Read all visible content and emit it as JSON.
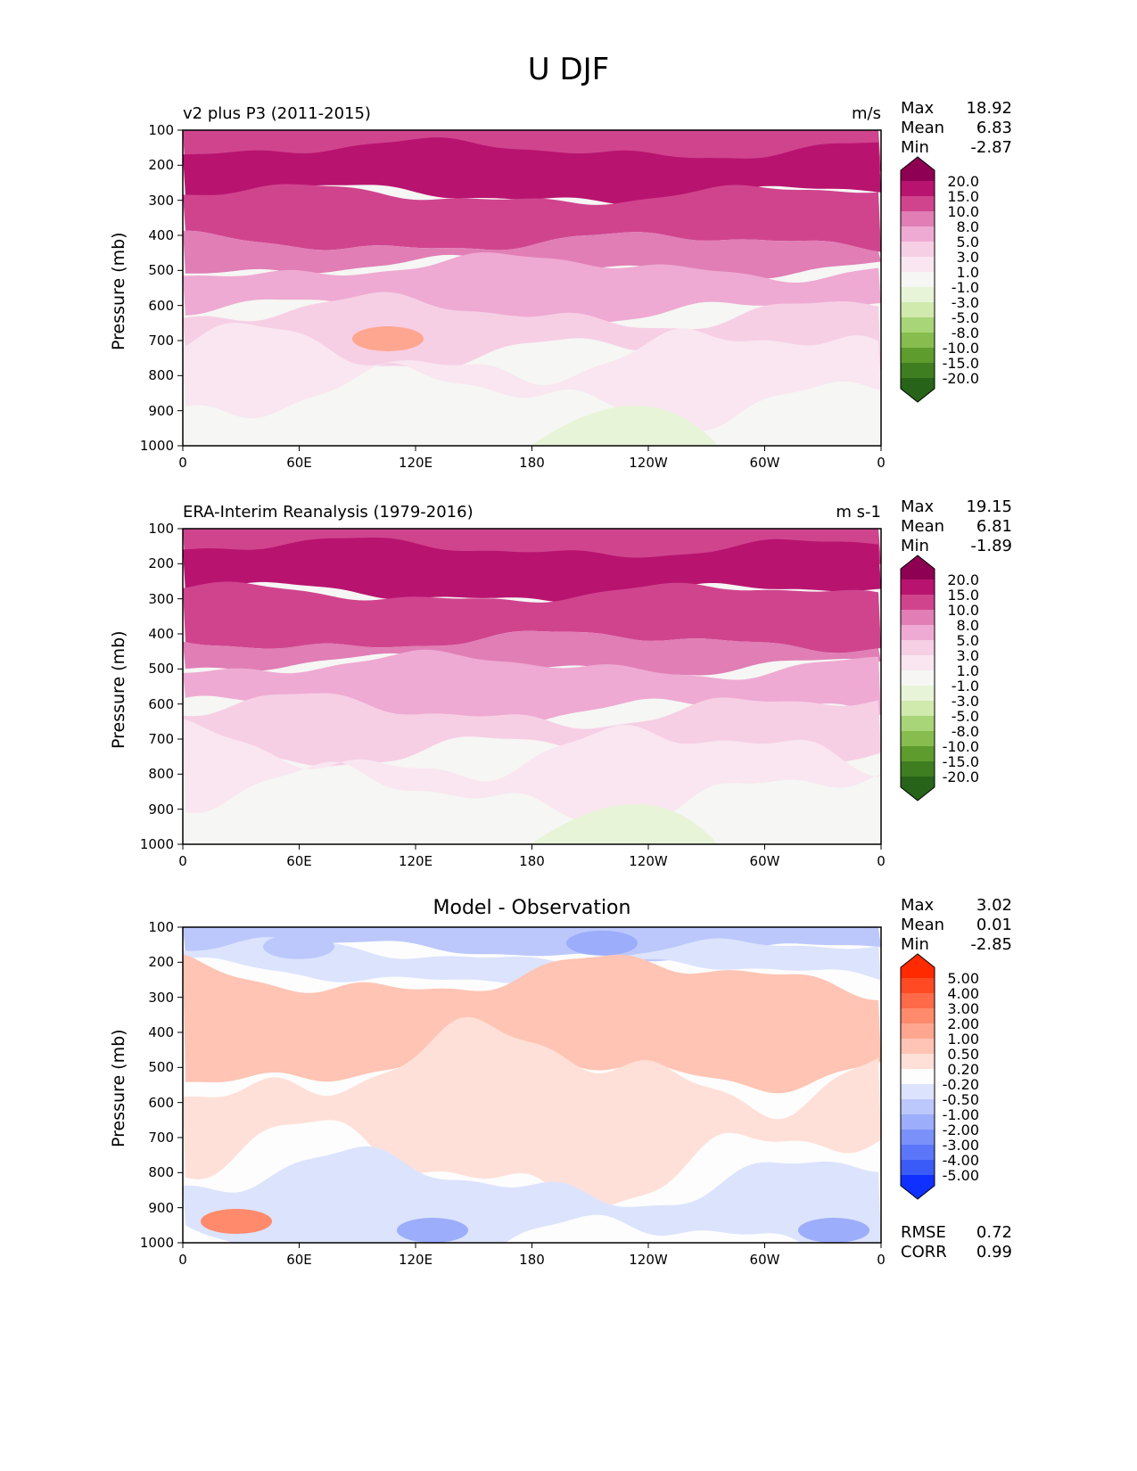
{
  "chart_data": [
    {
      "type": "heatmap",
      "suptitle": "U DJF",
      "title_left": "v2 plus P3 (2011-2015)",
      "title_right": "m/s",
      "ylabel": "Pressure (mb)",
      "xlabel": "",
      "x_ticks": [
        "0",
        "60E",
        "120E",
        "180",
        "120W",
        "60W",
        "0"
      ],
      "y_ticks": [
        "100",
        "200",
        "300",
        "400",
        "500",
        "600",
        "700",
        "800",
        "900",
        "1000"
      ],
      "xlim": [
        0,
        360
      ],
      "ylim": [
        1000,
        100
      ],
      "stats": {
        "Max": "18.92",
        "Mean": "6.83",
        "Min": "-2.87"
      },
      "colorbar": {
        "levels": [
          "20.0",
          "15.0",
          "10.0",
          "8.0",
          "5.0",
          "3.0",
          "1.0",
          "-1.0",
          "-3.0",
          "-5.0",
          "-8.0",
          "-10.0",
          "-15.0",
          "-20.0"
        ],
        "colors": [
          "#8e0152",
          "#b8146f",
          "#d0448e",
          "#e07eb5",
          "#eeaad2",
          "#f6cfe5",
          "#f9e6f0",
          "#f6f6f4",
          "#e8f4d8",
          "#d0eaae",
          "#a8d577",
          "#87bd4e",
          "#5f9c2e",
          "#3f7d21",
          "#276419"
        ]
      },
      "bands": [
        {
          "level": 20.0,
          "color": "#b8146f"
        },
        {
          "level": 15.0,
          "color": "#d0448e"
        },
        {
          "level": 10.0,
          "color": "#e07eb5"
        },
        {
          "level": 8.0,
          "color": "#eeaad2"
        },
        {
          "level": 5.0,
          "color": "#f6cfe5"
        },
        {
          "level": 3.0,
          "color": "#f9e6f0"
        },
        {
          "level": 1.0,
          "color": "#f6f6f4"
        }
      ]
    },
    {
      "type": "heatmap",
      "title_left": "ERA-Interim Reanalysis (1979-2016)",
      "title_right": "m s-1",
      "ylabel": "Pressure (mb)",
      "x_ticks": [
        "0",
        "60E",
        "120E",
        "180",
        "120W",
        "60W",
        "0"
      ],
      "y_ticks": [
        "100",
        "200",
        "300",
        "400",
        "500",
        "600",
        "700",
        "800",
        "900",
        "1000"
      ],
      "xlim": [
        0,
        360
      ],
      "ylim": [
        1000,
        100
      ],
      "stats": {
        "Max": "19.15",
        "Mean": "6.81",
        "Min": "-1.89"
      },
      "colorbar": {
        "levels": [
          "20.0",
          "15.0",
          "10.0",
          "8.0",
          "5.0",
          "3.0",
          "1.0",
          "-1.0",
          "-3.0",
          "-5.0",
          "-8.0",
          "-10.0",
          "-15.0",
          "-20.0"
        ],
        "colors": [
          "#8e0152",
          "#b8146f",
          "#d0448e",
          "#e07eb5",
          "#eeaad2",
          "#f6cfe5",
          "#f9e6f0",
          "#f6f6f4",
          "#e8f4d8",
          "#d0eaae",
          "#a8d577",
          "#87bd4e",
          "#5f9c2e",
          "#3f7d21",
          "#276419"
        ]
      }
    },
    {
      "type": "heatmap",
      "title_center": "Model - Observation",
      "ylabel": "Pressure (mb)",
      "x_ticks": [
        "0",
        "60E",
        "120E",
        "180",
        "120W",
        "60W",
        "0"
      ],
      "y_ticks": [
        "100",
        "200",
        "300",
        "400",
        "500",
        "600",
        "700",
        "800",
        "900",
        "1000"
      ],
      "xlim": [
        0,
        360
      ],
      "ylim": [
        1000,
        100
      ],
      "stats": {
        "Max": "3.02",
        "Mean": "0.01",
        "Min": "-2.85"
      },
      "bottom_stats": {
        "RMSE": "0.72",
        "CORR": "0.99"
      },
      "colorbar": {
        "levels": [
          "5.00",
          "4.00",
          "3.00",
          "2.00",
          "1.00",
          "0.50",
          "0.20",
          "-0.20",
          "-0.50",
          "-1.00",
          "-2.00",
          "-3.00",
          "-4.00",
          "-5.00"
        ],
        "colors": [
          "#ff2a00",
          "#ff4a24",
          "#ff6a48",
          "#ff8a6c",
          "#ffa690",
          "#ffc4b4",
          "#ffe0d8",
          "#fdfdfd",
          "#dce3fd",
          "#bcc8fc",
          "#9cadfb",
          "#7b91fa",
          "#5b76f9",
          "#3a5bf8",
          "#1030ff"
        ]
      }
    }
  ]
}
